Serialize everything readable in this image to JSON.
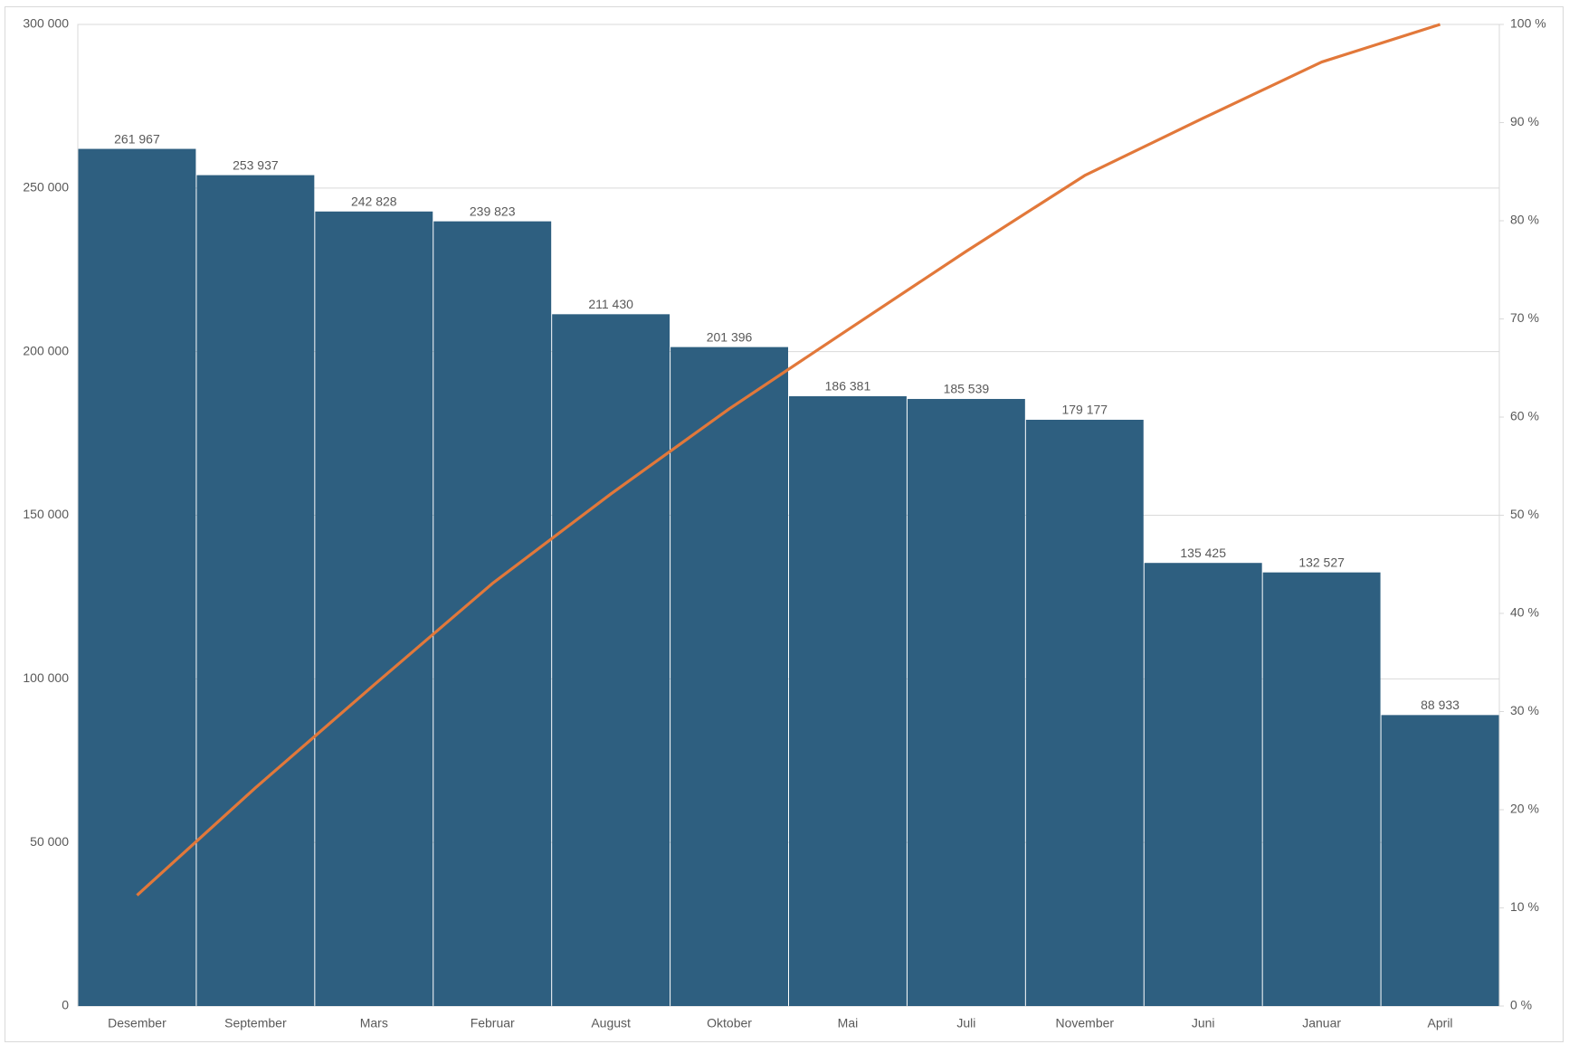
{
  "chart_data": {
    "type": "pareto",
    "categories": [
      "Desember",
      "September",
      "Mars",
      "Februar",
      "August",
      "Oktober",
      "Mai",
      "Juli",
      "November",
      "Juni",
      "Januar",
      "April"
    ],
    "series": [
      {
        "color": "#2e5f80",
        "values": [
          261967,
          253937,
          242828,
          239823,
          211430,
          201396,
          186381,
          185539,
          179177,
          135425,
          132527,
          88933
        ],
        "value_labels": [
          "261 967",
          "253 937",
          "242 828",
          "239 823",
          "211 430",
          "201 396",
          "186 381",
          "185 539",
          "179 177",
          "135 425",
          "132 527",
          "88 933"
        ]
      },
      {
        "color": "#e2783a",
        "axis": "y2",
        "values": [
          11.29,
          22.24,
          32.71,
          43.05,
          52.17,
          60.85,
          68.89,
          76.89,
          84.61,
          90.45,
          96.17,
          100
        ]
      }
    ],
    "ylim": [
      0,
      300000
    ],
    "yticks": [
      0,
      {
        "value": 50000,
        "label": "50 000"
      },
      {
        "value": 100000,
        "label": "100 000"
      },
      {
        "value": 150000,
        "label": "150 000"
      },
      {
        "value": 200000,
        "label": "200 000"
      },
      {
        "value": 250000,
        "label": "250 000"
      },
      {
        "value": 300000,
        "label": "300 000"
      }
    ],
    "y2lim": [
      0,
      100
    ],
    "y2ticks": [
      {
        "value": 0,
        "label": "0 %"
      },
      {
        "value": 10,
        "label": "10 %"
      },
      {
        "value": 20,
        "label": "20 %"
      },
      {
        "value": 30,
        "label": "30 %"
      },
      {
        "value": 40,
        "label": "40 %"
      },
      {
        "value": 50,
        "label": "50 %"
      },
      {
        "value": 60,
        "label": "60 %"
      },
      {
        "value": 70,
        "label": "70 %"
      },
      {
        "value": 80,
        "label": "80 %"
      },
      {
        "value": 90,
        "label": "90 %"
      },
      {
        "value": 100,
        "label": "100 %"
      }
    ],
    "grid": true
  }
}
